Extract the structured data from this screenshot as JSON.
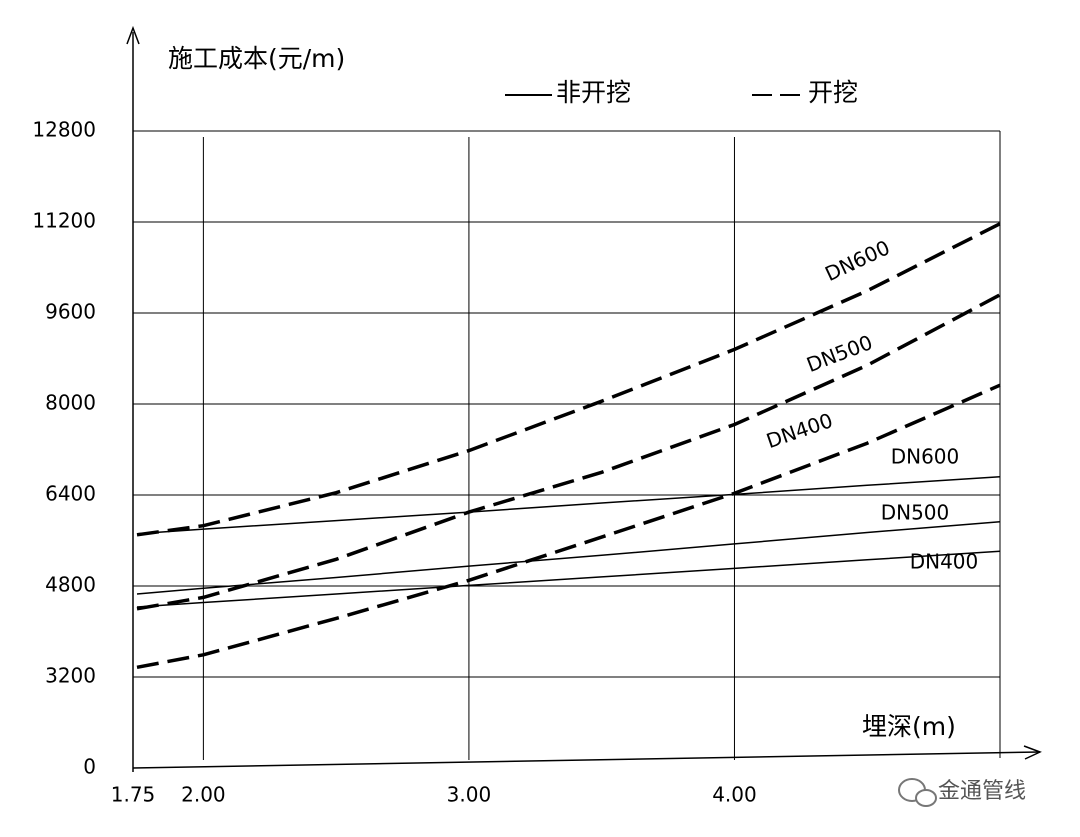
{
  "chart_data": {
    "type": "line",
    "title": "施工成本(元/m)",
    "x_label": "埋深(m)",
    "x": [
      1.75,
      2.0,
      2.5,
      3.0,
      3.5,
      4.0,
      4.5,
      5.0
    ],
    "xlim": [
      1.75,
      5.0
    ],
    "xticks": [
      {
        "value": 1.75,
        "label": "1.75"
      },
      {
        "value": 2.0,
        "label": "2.00"
      },
      {
        "value": 3.0,
        "label": "3.00"
      },
      {
        "value": 4.0,
        "label": "4.00"
      }
    ],
    "ylim": [
      0,
      12800
    ],
    "yticks": [
      0,
      3200,
      4800,
      6400,
      8000,
      9600,
      11200,
      12800
    ],
    "grid": true,
    "legend": [
      {
        "label": "非开挖",
        "style": "solid"
      },
      {
        "label": "开挖",
        "style": "dashed"
      }
    ],
    "series": [
      {
        "name": "DN600",
        "style": "dashed",
        "color": "#000000",
        "values": [
          5700,
          5860,
          6440,
          7180,
          8050,
          8960,
          9990,
          11170
        ]
      },
      {
        "name": "DN500",
        "style": "dashed",
        "color": "#000000",
        "values": [
          4400,
          4600,
          5270,
          6100,
          6800,
          7640,
          8680,
          9920
        ]
      },
      {
        "name": "DN400",
        "style": "dashed",
        "color": "#000000",
        "values": [
          3370,
          3590,
          4230,
          4900,
          5660,
          6430,
          7310,
          8330
        ]
      },
      {
        "name": "DN600",
        "style": "solid",
        "color": "#000000",
        "values": [
          5720,
          5800,
          5950,
          6100,
          6260,
          6410,
          6570,
          6720
        ]
      },
      {
        "name": "DN500",
        "style": "solid",
        "color": "#000000",
        "values": [
          4660,
          4760,
          4950,
          5150,
          5340,
          5540,
          5740,
          5930
        ]
      },
      {
        "name": "DN400",
        "style": "solid",
        "color": "#000000",
        "values": [
          4430,
          4510,
          4660,
          4810,
          4960,
          5110,
          5260,
          5410
        ]
      }
    ],
    "watermark": "金通管线"
  }
}
